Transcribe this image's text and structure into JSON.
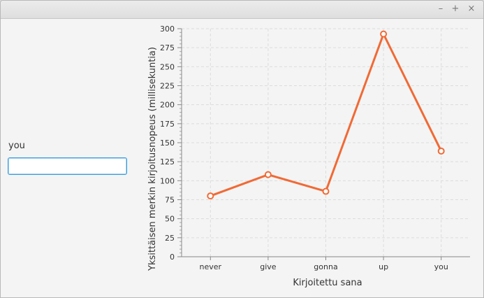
{
  "window": {
    "controls": {
      "minimize": "–",
      "maximize": "+",
      "close": "×"
    }
  },
  "left_panel": {
    "word_label": "you",
    "input_value": ""
  },
  "chart_data": {
    "type": "line",
    "xlabel": "Kirjoitettu sana",
    "ylabel": "Yksittäisen merkin kirjoitusnopeus (millisekuntia)",
    "categories": [
      "never",
      "give",
      "gonna",
      "up",
      "you"
    ],
    "series": [
      {
        "values": [
          80,
          108,
          86,
          293,
          139
        ],
        "color": "#f06a35"
      }
    ],
    "ylim": [
      0,
      300
    ],
    "yticks": [
      0,
      25,
      50,
      75,
      100,
      125,
      150,
      175,
      200,
      225,
      250,
      275,
      300
    ],
    "grid": true,
    "legend": "none"
  }
}
